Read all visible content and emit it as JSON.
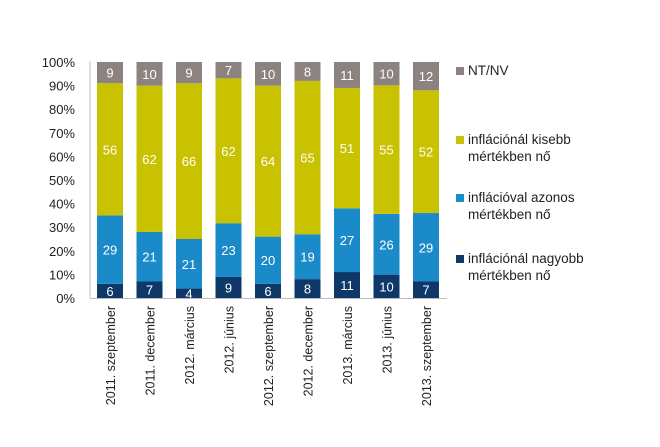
{
  "chart_data": {
    "type": "bar",
    "stacked": true,
    "percent": true,
    "title": "",
    "xlabel": "",
    "ylabel": "",
    "ylim": [
      0,
      100
    ],
    "yticks": [
      "0%",
      "10%",
      "20%",
      "30%",
      "40%",
      "50%",
      "60%",
      "70%",
      "80%",
      "90%",
      "100%"
    ],
    "grid": false,
    "legend_position": "right",
    "categories": [
      "2011. szeptember",
      "2011. december",
      "2012. március",
      "2012. június",
      "2012. szeptember",
      "2012. december",
      "2013. március",
      "2013. június",
      "2013. szeptember"
    ],
    "series": [
      {
        "name": "inflációnál nagyobb mértékben nő",
        "color": "#0d3868",
        "values": [
          6,
          7,
          4,
          9,
          6,
          8,
          11,
          10,
          7
        ]
      },
      {
        "name": "inflációval azonos mértékben nő",
        "color": "#1a8ac8",
        "values": [
          29,
          21,
          21,
          23,
          20,
          19,
          27,
          26,
          29
        ]
      },
      {
        "name": "inflációnál kisebb mértékben nő",
        "color": "#c9c200",
        "values": [
          56,
          62,
          66,
          62,
          64,
          65,
          51,
          55,
          52
        ]
      },
      {
        "name": "NT/NV",
        "color": "#8c8280",
        "values": [
          9,
          10,
          9,
          7,
          10,
          8,
          11,
          10,
          12
        ]
      }
    ]
  },
  "legend": {
    "items": [
      {
        "line1": "NT/NV",
        "line2": "",
        "color": "#8c8280"
      },
      {
        "line1": "inflációnál kisebb",
        "line2": "mértékben nő",
        "color": "#c9c200"
      },
      {
        "line1": "inflációval azonos",
        "line2": "mértékben nő",
        "color": "#1a8ac8"
      },
      {
        "line1": "inflációnál nagyobb",
        "line2": "mértékben nő",
        "color": "#0d3868"
      }
    ]
  }
}
